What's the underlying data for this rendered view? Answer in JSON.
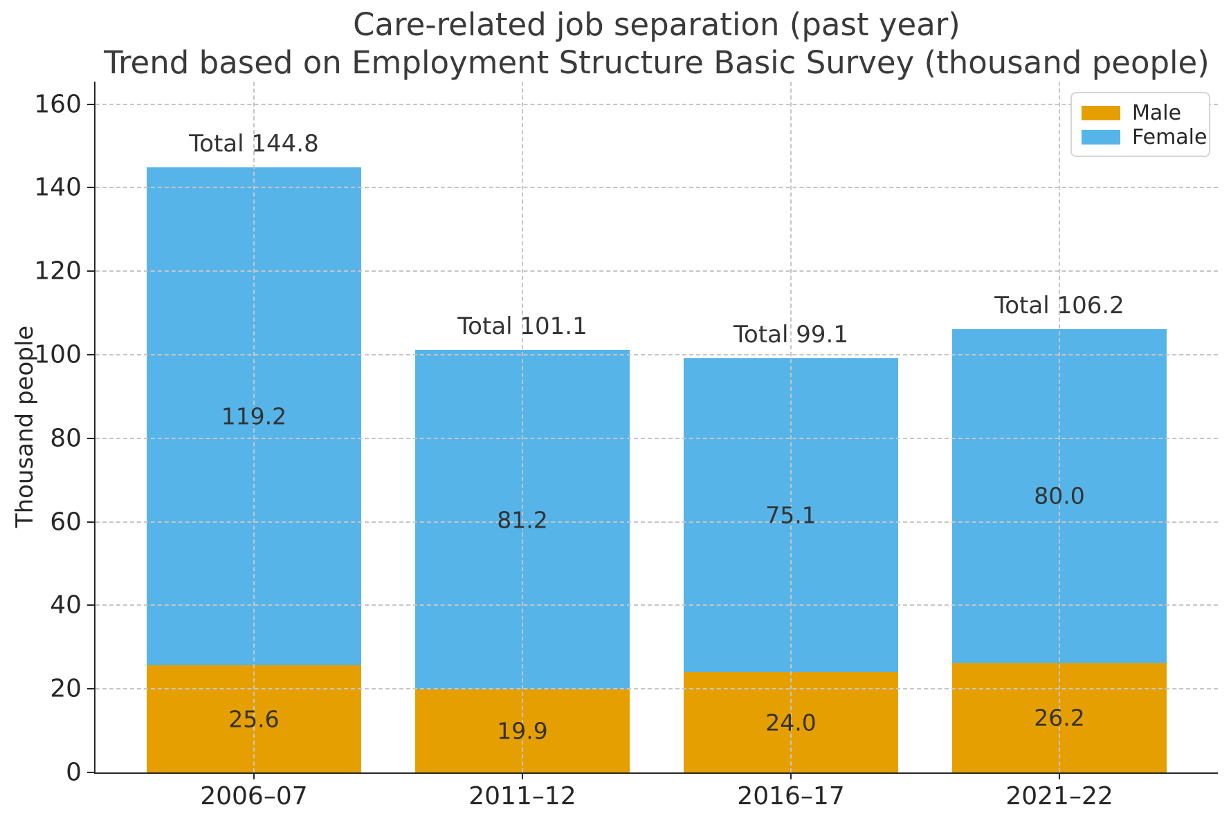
{
  "title": {
    "line1": "Care-related job separation (past year)",
    "line2": "Trend based on Employment Structure Basic Survey (thousand people)"
  },
  "chart_data": {
    "type": "bar",
    "stacked": true,
    "title": "Care-related job separation (past year)\nTrend based on Employment Structure Basic Survey (thousand people)",
    "categories": [
      "2006–07",
      "2011–12",
      "2016–17",
      "2021–22"
    ],
    "series": [
      {
        "name": "Male",
        "color": "#E69F00",
        "values": [
          25.6,
          19.9,
          24.0,
          26.2
        ]
      },
      {
        "name": "Female",
        "color": "#56B4E9",
        "values": [
          119.2,
          81.2,
          75.1,
          80.0
        ]
      }
    ],
    "totals": [
      144.8,
      101.1,
      99.1,
      106.2
    ],
    "total_label_prefix": "Total ",
    "value_decimals": 1,
    "xlabel": "",
    "ylabel": "Thousand people",
    "yticks": [
      0,
      20,
      40,
      60,
      80,
      100,
      120,
      140,
      160
    ],
    "ylim": [
      0,
      165.4
    ],
    "grid": true,
    "grid_style": "dashed",
    "legend_position": "upper right",
    "legend": [
      "Male",
      "Female"
    ]
  },
  "colors": {
    "axis": "#262626",
    "grid": "#c6c6c6",
    "text": "#333333",
    "male": "#E69F00",
    "female": "#56B4E9"
  }
}
